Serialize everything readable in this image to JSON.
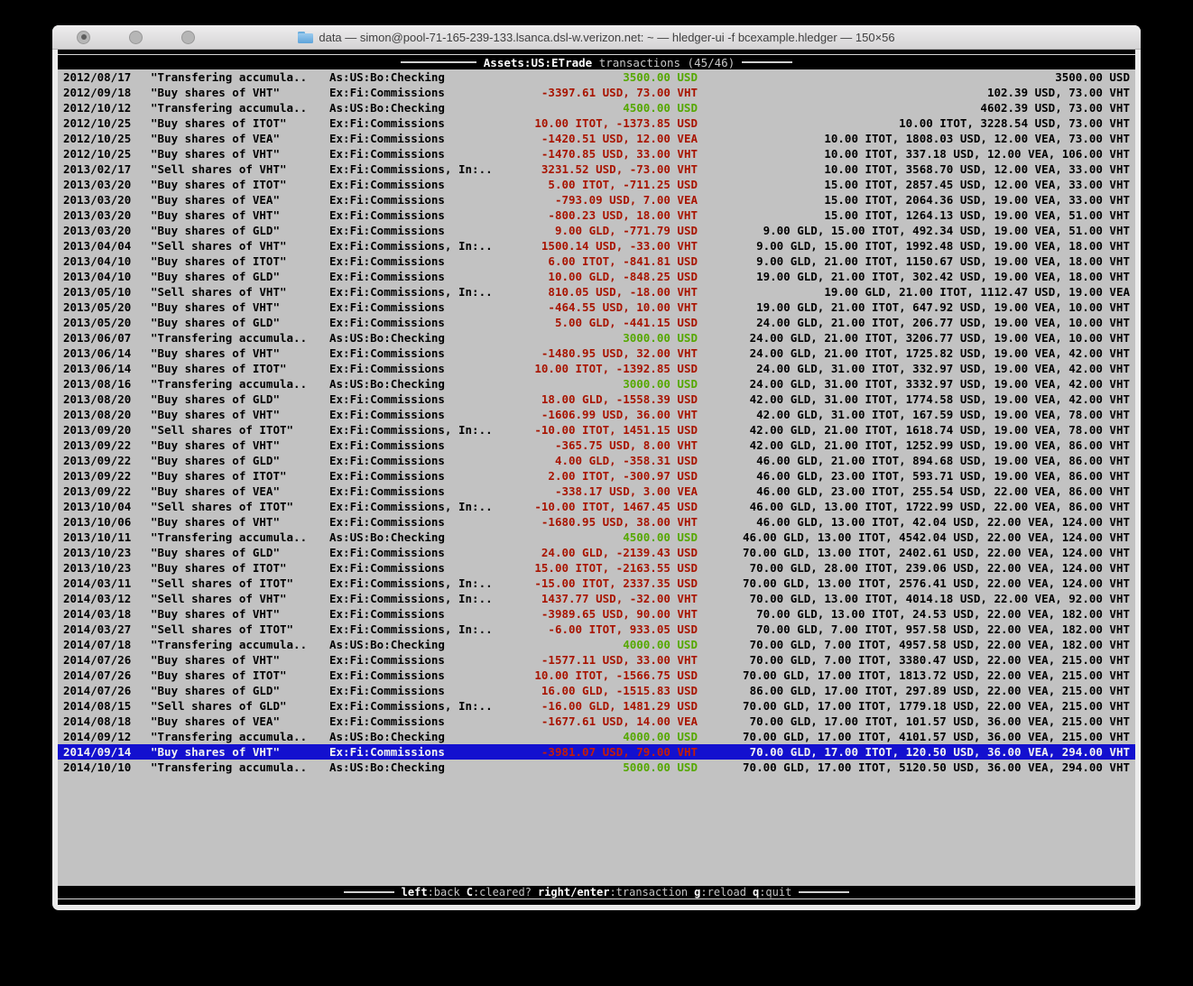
{
  "window": {
    "title": "data — simon@pool-71-165-239-133.lsanca.dsl-w.verizon.net: ~ — hledger-ui -f bcexample.hledger — 150×56"
  },
  "terminal": {
    "header": {
      "account": "Assets:US:ETrade",
      "rest": "transactions (45/46)"
    },
    "status_hints": [
      {
        "key": "left",
        "label": ":back"
      },
      {
        "key": "C",
        "label": ":cleared?"
      },
      {
        "key": "right/enter",
        "label": ":transaction"
      },
      {
        "key": "g",
        "label": ":reload"
      },
      {
        "key": "q",
        "label": ":quit"
      }
    ],
    "transactions": [
      {
        "date": "2012/08/17",
        "description": "\"Transfering accumula..",
        "account": "As:US:Bo:Checking",
        "amount": "3500.00 USD",
        "amount_color": "green",
        "balance": "3500.00 USD",
        "selected": false
      },
      {
        "date": "2012/09/18",
        "description": "\"Buy shares of VHT\"",
        "account": "Ex:Fi:Commissions",
        "amount": "-3397.61 USD, 73.00 VHT",
        "amount_color": "red",
        "balance": "102.39 USD, 73.00 VHT",
        "selected": false
      },
      {
        "date": "2012/10/12",
        "description": "\"Transfering accumula..",
        "account": "As:US:Bo:Checking",
        "amount": "4500.00 USD",
        "amount_color": "green",
        "balance": "4602.39 USD, 73.00 VHT",
        "selected": false
      },
      {
        "date": "2012/10/25",
        "description": "\"Buy shares of ITOT\"",
        "account": "Ex:Fi:Commissions",
        "amount": "10.00 ITOT, -1373.85 USD",
        "amount_color": "red",
        "balance": "10.00 ITOT, 3228.54 USD, 73.00 VHT",
        "selected": false
      },
      {
        "date": "2012/10/25",
        "description": "\"Buy shares of VEA\"",
        "account": "Ex:Fi:Commissions",
        "amount": "-1420.51 USD, 12.00 VEA",
        "amount_color": "red",
        "balance": "10.00 ITOT, 1808.03 USD, 12.00 VEA, 73.00 VHT",
        "selected": false
      },
      {
        "date": "2012/10/25",
        "description": "\"Buy shares of VHT\"",
        "account": "Ex:Fi:Commissions",
        "amount": "-1470.85 USD, 33.00 VHT",
        "amount_color": "red",
        "balance": "10.00 ITOT, 337.18 USD, 12.00 VEA, 106.00 VHT",
        "selected": false
      },
      {
        "date": "2013/02/17",
        "description": "\"Sell shares of VHT\"",
        "account": "Ex:Fi:Commissions, In:..",
        "amount": "3231.52 USD, -73.00 VHT",
        "amount_color": "red",
        "balance": "10.00 ITOT, 3568.70 USD, 12.00 VEA, 33.00 VHT",
        "selected": false
      },
      {
        "date": "2013/03/20",
        "description": "\"Buy shares of ITOT\"",
        "account": "Ex:Fi:Commissions",
        "amount": "5.00 ITOT, -711.25 USD",
        "amount_color": "red",
        "balance": "15.00 ITOT, 2857.45 USD, 12.00 VEA, 33.00 VHT",
        "selected": false
      },
      {
        "date": "2013/03/20",
        "description": "\"Buy shares of VEA\"",
        "account": "Ex:Fi:Commissions",
        "amount": "-793.09 USD, 7.00 VEA",
        "amount_color": "red",
        "balance": "15.00 ITOT, 2064.36 USD, 19.00 VEA, 33.00 VHT",
        "selected": false
      },
      {
        "date": "2013/03/20",
        "description": "\"Buy shares of VHT\"",
        "account": "Ex:Fi:Commissions",
        "amount": "-800.23 USD, 18.00 VHT",
        "amount_color": "red",
        "balance": "15.00 ITOT, 1264.13 USD, 19.00 VEA, 51.00 VHT",
        "selected": false
      },
      {
        "date": "2013/03/20",
        "description": "\"Buy shares of GLD\"",
        "account": "Ex:Fi:Commissions",
        "amount": "9.00 GLD, -771.79 USD",
        "amount_color": "red",
        "balance": "9.00 GLD, 15.00 ITOT, 492.34 USD, 19.00 VEA, 51.00 VHT",
        "selected": false
      },
      {
        "date": "2013/04/04",
        "description": "\"Sell shares of VHT\"",
        "account": "Ex:Fi:Commissions, In:..",
        "amount": "1500.14 USD, -33.00 VHT",
        "amount_color": "red",
        "balance": "9.00 GLD, 15.00 ITOT, 1992.48 USD, 19.00 VEA, 18.00 VHT",
        "selected": false
      },
      {
        "date": "2013/04/10",
        "description": "\"Buy shares of ITOT\"",
        "account": "Ex:Fi:Commissions",
        "amount": "6.00 ITOT, -841.81 USD",
        "amount_color": "red",
        "balance": "9.00 GLD, 21.00 ITOT, 1150.67 USD, 19.00 VEA, 18.00 VHT",
        "selected": false
      },
      {
        "date": "2013/04/10",
        "description": "\"Buy shares of GLD\"",
        "account": "Ex:Fi:Commissions",
        "amount": "10.00 GLD, -848.25 USD",
        "amount_color": "red",
        "balance": "19.00 GLD, 21.00 ITOT, 302.42 USD, 19.00 VEA, 18.00 VHT",
        "selected": false
      },
      {
        "date": "2013/05/10",
        "description": "\"Sell shares of VHT\"",
        "account": "Ex:Fi:Commissions, In:..",
        "amount": "810.05 USD, -18.00 VHT",
        "amount_color": "red",
        "balance": "19.00 GLD, 21.00 ITOT, 1112.47 USD, 19.00 VEA",
        "selected": false
      },
      {
        "date": "2013/05/20",
        "description": "\"Buy shares of VHT\"",
        "account": "Ex:Fi:Commissions",
        "amount": "-464.55 USD, 10.00 VHT",
        "amount_color": "red",
        "balance": "19.00 GLD, 21.00 ITOT, 647.92 USD, 19.00 VEA, 10.00 VHT",
        "selected": false
      },
      {
        "date": "2013/05/20",
        "description": "\"Buy shares of GLD\"",
        "account": "Ex:Fi:Commissions",
        "amount": "5.00 GLD, -441.15 USD",
        "amount_color": "red",
        "balance": "24.00 GLD, 21.00 ITOT, 206.77 USD, 19.00 VEA, 10.00 VHT",
        "selected": false
      },
      {
        "date": "2013/06/07",
        "description": "\"Transfering accumula..",
        "account": "As:US:Bo:Checking",
        "amount": "3000.00 USD",
        "amount_color": "green",
        "balance": "24.00 GLD, 21.00 ITOT, 3206.77 USD, 19.00 VEA, 10.00 VHT",
        "selected": false
      },
      {
        "date": "2013/06/14",
        "description": "\"Buy shares of VHT\"",
        "account": "Ex:Fi:Commissions",
        "amount": "-1480.95 USD, 32.00 VHT",
        "amount_color": "red",
        "balance": "24.00 GLD, 21.00 ITOT, 1725.82 USD, 19.00 VEA, 42.00 VHT",
        "selected": false
      },
      {
        "date": "2013/06/14",
        "description": "\"Buy shares of ITOT\"",
        "account": "Ex:Fi:Commissions",
        "amount": "10.00 ITOT, -1392.85 USD",
        "amount_color": "red",
        "balance": "24.00 GLD, 31.00 ITOT, 332.97 USD, 19.00 VEA, 42.00 VHT",
        "selected": false
      },
      {
        "date": "2013/08/16",
        "description": "\"Transfering accumula..",
        "account": "As:US:Bo:Checking",
        "amount": "3000.00 USD",
        "amount_color": "green",
        "balance": "24.00 GLD, 31.00 ITOT, 3332.97 USD, 19.00 VEA, 42.00 VHT",
        "selected": false
      },
      {
        "date": "2013/08/20",
        "description": "\"Buy shares of GLD\"",
        "account": "Ex:Fi:Commissions",
        "amount": "18.00 GLD, -1558.39 USD",
        "amount_color": "red",
        "balance": "42.00 GLD, 31.00 ITOT, 1774.58 USD, 19.00 VEA, 42.00 VHT",
        "selected": false
      },
      {
        "date": "2013/08/20",
        "description": "\"Buy shares of VHT\"",
        "account": "Ex:Fi:Commissions",
        "amount": "-1606.99 USD, 36.00 VHT",
        "amount_color": "red",
        "balance": "42.00 GLD, 31.00 ITOT, 167.59 USD, 19.00 VEA, 78.00 VHT",
        "selected": false
      },
      {
        "date": "2013/09/20",
        "description": "\"Sell shares of ITOT\"",
        "account": "Ex:Fi:Commissions, In:..",
        "amount": "-10.00 ITOT, 1451.15 USD",
        "amount_color": "red",
        "balance": "42.00 GLD, 21.00 ITOT, 1618.74 USD, 19.00 VEA, 78.00 VHT",
        "selected": false
      },
      {
        "date": "2013/09/22",
        "description": "\"Buy shares of VHT\"",
        "account": "Ex:Fi:Commissions",
        "amount": "-365.75 USD, 8.00 VHT",
        "amount_color": "red",
        "balance": "42.00 GLD, 21.00 ITOT, 1252.99 USD, 19.00 VEA, 86.00 VHT",
        "selected": false
      },
      {
        "date": "2013/09/22",
        "description": "\"Buy shares of GLD\"",
        "account": "Ex:Fi:Commissions",
        "amount": "4.00 GLD, -358.31 USD",
        "amount_color": "red",
        "balance": "46.00 GLD, 21.00 ITOT, 894.68 USD, 19.00 VEA, 86.00 VHT",
        "selected": false
      },
      {
        "date": "2013/09/22",
        "description": "\"Buy shares of ITOT\"",
        "account": "Ex:Fi:Commissions",
        "amount": "2.00 ITOT, -300.97 USD",
        "amount_color": "red",
        "balance": "46.00 GLD, 23.00 ITOT, 593.71 USD, 19.00 VEA, 86.00 VHT",
        "selected": false
      },
      {
        "date": "2013/09/22",
        "description": "\"Buy shares of VEA\"",
        "account": "Ex:Fi:Commissions",
        "amount": "-338.17 USD, 3.00 VEA",
        "amount_color": "red",
        "balance": "46.00 GLD, 23.00 ITOT, 255.54 USD, 22.00 VEA, 86.00 VHT",
        "selected": false
      },
      {
        "date": "2013/10/04",
        "description": "\"Sell shares of ITOT\"",
        "account": "Ex:Fi:Commissions, In:..",
        "amount": "-10.00 ITOT, 1467.45 USD",
        "amount_color": "red",
        "balance": "46.00 GLD, 13.00 ITOT, 1722.99 USD, 22.00 VEA, 86.00 VHT",
        "selected": false
      },
      {
        "date": "2013/10/06",
        "description": "\"Buy shares of VHT\"",
        "account": "Ex:Fi:Commissions",
        "amount": "-1680.95 USD, 38.00 VHT",
        "amount_color": "red",
        "balance": "46.00 GLD, 13.00 ITOT, 42.04 USD, 22.00 VEA, 124.00 VHT",
        "selected": false
      },
      {
        "date": "2013/10/11",
        "description": "\"Transfering accumula..",
        "account": "As:US:Bo:Checking",
        "amount": "4500.00 USD",
        "amount_color": "green",
        "balance": "46.00 GLD, 13.00 ITOT, 4542.04 USD, 22.00 VEA, 124.00 VHT",
        "selected": false
      },
      {
        "date": "2013/10/23",
        "description": "\"Buy shares of GLD\"",
        "account": "Ex:Fi:Commissions",
        "amount": "24.00 GLD, -2139.43 USD",
        "amount_color": "red",
        "balance": "70.00 GLD, 13.00 ITOT, 2402.61 USD, 22.00 VEA, 124.00 VHT",
        "selected": false
      },
      {
        "date": "2013/10/23",
        "description": "\"Buy shares of ITOT\"",
        "account": "Ex:Fi:Commissions",
        "amount": "15.00 ITOT, -2163.55 USD",
        "amount_color": "red",
        "balance": "70.00 GLD, 28.00 ITOT, 239.06 USD, 22.00 VEA, 124.00 VHT",
        "selected": false
      },
      {
        "date": "2014/03/11",
        "description": "\"Sell shares of ITOT\"",
        "account": "Ex:Fi:Commissions, In:..",
        "amount": "-15.00 ITOT, 2337.35 USD",
        "amount_color": "red",
        "balance": "70.00 GLD, 13.00 ITOT, 2576.41 USD, 22.00 VEA, 124.00 VHT",
        "selected": false
      },
      {
        "date": "2014/03/12",
        "description": "\"Sell shares of VHT\"",
        "account": "Ex:Fi:Commissions, In:..",
        "amount": "1437.77 USD, -32.00 VHT",
        "amount_color": "red",
        "balance": "70.00 GLD, 13.00 ITOT, 4014.18 USD, 22.00 VEA, 92.00 VHT",
        "selected": false
      },
      {
        "date": "2014/03/18",
        "description": "\"Buy shares of VHT\"",
        "account": "Ex:Fi:Commissions",
        "amount": "-3989.65 USD, 90.00 VHT",
        "amount_color": "red",
        "balance": "70.00 GLD, 13.00 ITOT, 24.53 USD, 22.00 VEA, 182.00 VHT",
        "selected": false
      },
      {
        "date": "2014/03/27",
        "description": "\"Sell shares of ITOT\"",
        "account": "Ex:Fi:Commissions, In:..",
        "amount": "-6.00 ITOT, 933.05 USD",
        "amount_color": "red",
        "balance": "70.00 GLD, 7.00 ITOT, 957.58 USD, 22.00 VEA, 182.00 VHT",
        "selected": false
      },
      {
        "date": "2014/07/18",
        "description": "\"Transfering accumula..",
        "account": "As:US:Bo:Checking",
        "amount": "4000.00 USD",
        "amount_color": "green",
        "balance": "70.00 GLD, 7.00 ITOT, 4957.58 USD, 22.00 VEA, 182.00 VHT",
        "selected": false
      },
      {
        "date": "2014/07/26",
        "description": "\"Buy shares of VHT\"",
        "account": "Ex:Fi:Commissions",
        "amount": "-1577.11 USD, 33.00 VHT",
        "amount_color": "red",
        "balance": "70.00 GLD, 7.00 ITOT, 3380.47 USD, 22.00 VEA, 215.00 VHT",
        "selected": false
      },
      {
        "date": "2014/07/26",
        "description": "\"Buy shares of ITOT\"",
        "account": "Ex:Fi:Commissions",
        "amount": "10.00 ITOT, -1566.75 USD",
        "amount_color": "red",
        "balance": "70.00 GLD, 17.00 ITOT, 1813.72 USD, 22.00 VEA, 215.00 VHT",
        "selected": false
      },
      {
        "date": "2014/07/26",
        "description": "\"Buy shares of GLD\"",
        "account": "Ex:Fi:Commissions",
        "amount": "16.00 GLD, -1515.83 USD",
        "amount_color": "red",
        "balance": "86.00 GLD, 17.00 ITOT, 297.89 USD, 22.00 VEA, 215.00 VHT",
        "selected": false
      },
      {
        "date": "2014/08/15",
        "description": "\"Sell shares of GLD\"",
        "account": "Ex:Fi:Commissions, In:..",
        "amount": "-16.00 GLD, 1481.29 USD",
        "amount_color": "red",
        "balance": "70.00 GLD, 17.00 ITOT, 1779.18 USD, 22.00 VEA, 215.00 VHT",
        "selected": false
      },
      {
        "date": "2014/08/18",
        "description": "\"Buy shares of VEA\"",
        "account": "Ex:Fi:Commissions",
        "amount": "-1677.61 USD, 14.00 VEA",
        "amount_color": "red",
        "balance": "70.00 GLD, 17.00 ITOT, 101.57 USD, 36.00 VEA, 215.00 VHT",
        "selected": false
      },
      {
        "date": "2014/09/12",
        "description": "\"Transfering accumula..",
        "account": "As:US:Bo:Checking",
        "amount": "4000.00 USD",
        "amount_color": "green",
        "balance": "70.00 GLD, 17.00 ITOT, 4101.57 USD, 36.00 VEA, 215.00 VHT",
        "selected": false
      },
      {
        "date": "2014/09/14",
        "description": "\"Buy shares of VHT\"",
        "account": "Ex:Fi:Commissions",
        "amount": "-3981.07 USD, 79.00 VHT",
        "amount_color": "red",
        "balance": "70.00 GLD, 17.00 ITOT, 120.50 USD, 36.00 VEA, 294.00 VHT",
        "selected": true
      },
      {
        "date": "2014/10/10",
        "description": "\"Transfering accumula..",
        "account": "As:US:Bo:Checking",
        "amount": "5000.00 USD",
        "amount_color": "green",
        "balance": "70.00 GLD, 17.00 ITOT, 5120.50 USD, 36.00 VEA, 294.00 VHT",
        "selected": false
      }
    ]
  },
  "colors": {
    "terminal_background": "#c2c2c2",
    "bar_background": "#000000",
    "selection_background": "#1310cf",
    "amount_negative": "#a81400",
    "amount_positive": "#55a800"
  }
}
